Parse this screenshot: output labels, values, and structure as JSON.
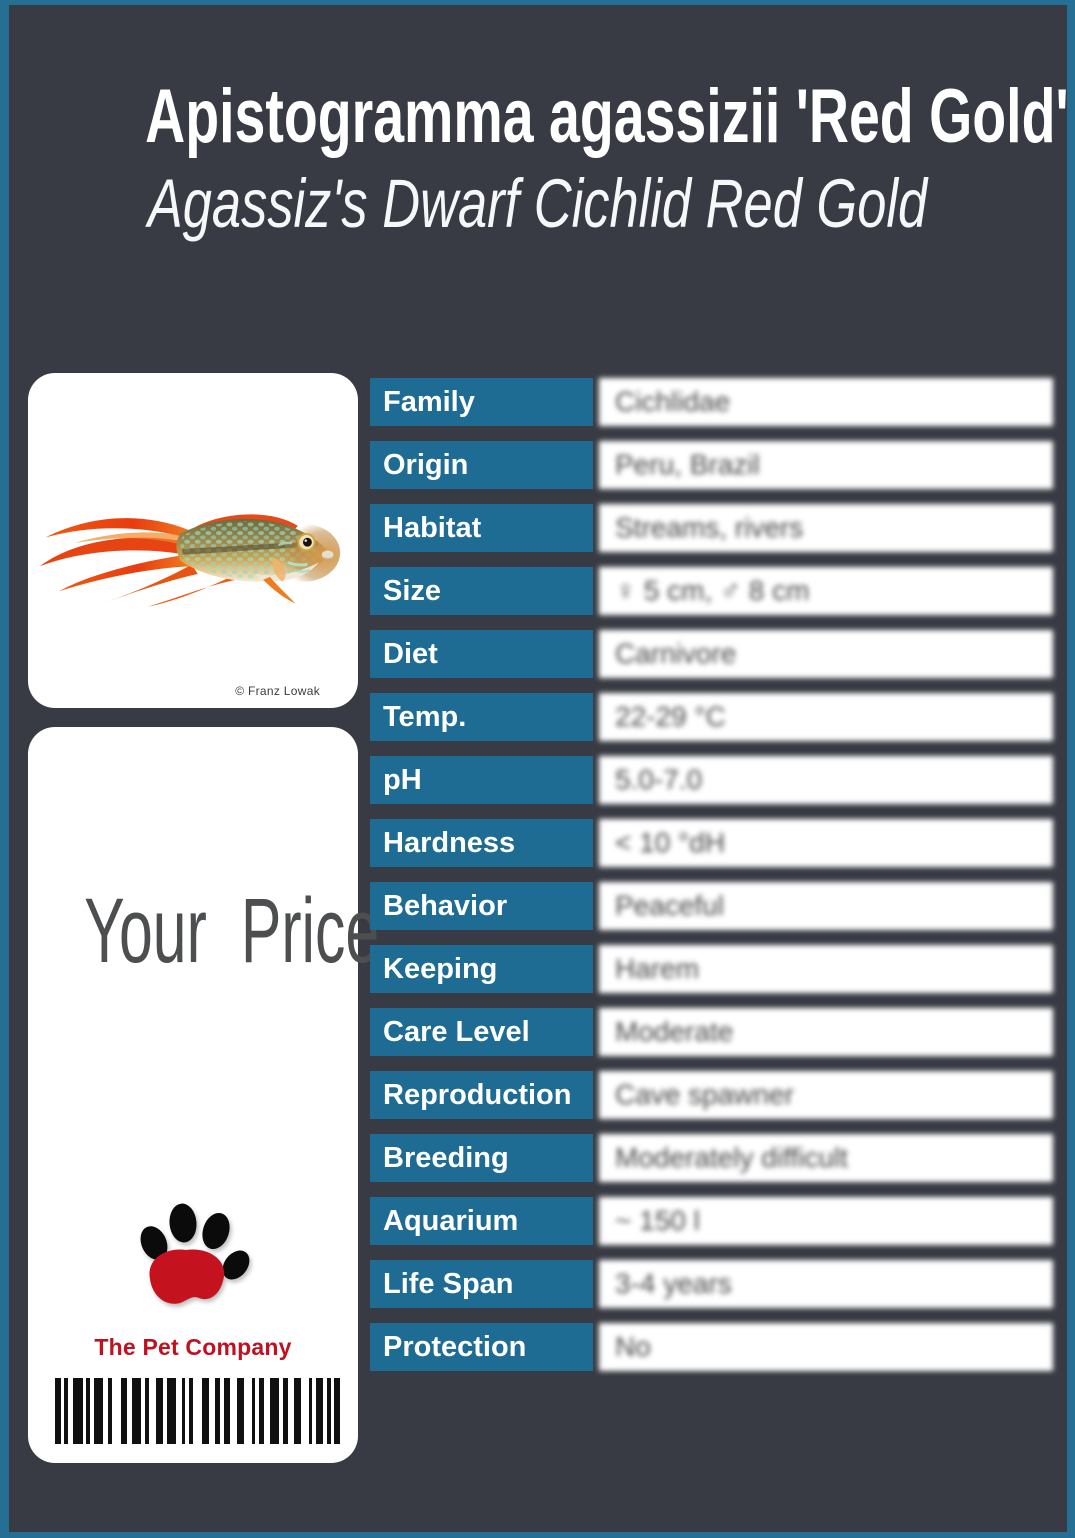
{
  "header": {
    "title": "Apistogramma agassizii 'Red Gold'",
    "subtitle": "Agassiz's Dwarf Cichlid Red Gold"
  },
  "photo": {
    "credit": "© Franz Lowak"
  },
  "price": {
    "label": "Your Price"
  },
  "brand": {
    "name": "The Pet Company",
    "logo_icon": "paw-print-icon"
  },
  "table": {
    "rows": [
      {
        "label": "Family",
        "value": "Cichlidae"
      },
      {
        "label": "Origin",
        "value": "Peru, Brazil"
      },
      {
        "label": "Habitat",
        "value": "Streams, rivers"
      },
      {
        "label": "Size",
        "value": "♀ 5 cm, ♂ 8 cm"
      },
      {
        "label": "Diet",
        "value": "Carnivore"
      },
      {
        "label": "Temp.",
        "value": "22-29 °C"
      },
      {
        "label": "pH",
        "value": "5.0-7.0"
      },
      {
        "label": "Hardness",
        "value": "< 10 °dH"
      },
      {
        "label": "Behavior",
        "value": "Peaceful"
      },
      {
        "label": "Keeping",
        "value": "Harem"
      },
      {
        "label": "Care Level",
        "value": "Moderate"
      },
      {
        "label": "Reproduction",
        "value": "Cave spawner"
      },
      {
        "label": "Breeding",
        "value": "Moderately difficult"
      },
      {
        "label": "Aquarium",
        "value": "~ 150 l"
      },
      {
        "label": "Life Span",
        "value": "3-4 years"
      },
      {
        "label": "Protection",
        "value": "No"
      }
    ]
  },
  "barcode": {
    "pattern": "3 2 2 3 5 2 2 2 5 3 2 5 3 3 5 2 2 4 4 2 5 3 2 2 2 5 4 3 3 2 3 4 4 4 2 2 3 3 5 2 3 3 4 4 2 2 4 2 2 2 3"
  },
  "colors": {
    "background": "#383B43",
    "frame_teal": "#256E94",
    "cell_blue": "#1E6B94",
    "card_white": "#FFFFFF",
    "brand_red": "#C01120",
    "fish_red": "#E84212",
    "fish_orange": "#F07B1E"
  }
}
